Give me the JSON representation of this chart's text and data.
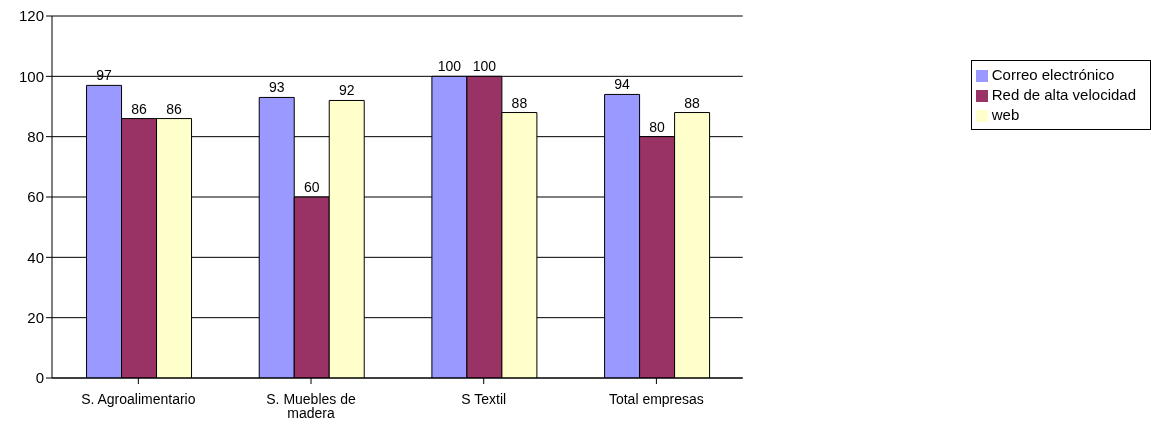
{
  "chart_data": {
    "type": "bar",
    "categories": [
      "S. Agroalimentario",
      "S. Muebles de madera",
      "S Textil",
      "Total empresas"
    ],
    "series": [
      {
        "name": "Correo electrónico",
        "color": "#9999ff",
        "values": [
          97,
          93,
          100,
          94
        ]
      },
      {
        "name": "Red de alta velocidad",
        "color": "#993366",
        "values": [
          86,
          60,
          100,
          80
        ]
      },
      {
        "name": "web",
        "color": "#ffffcc",
        "values": [
          86,
          92,
          88,
          88
        ]
      }
    ],
    "ylim": [
      0,
      120
    ],
    "yticks": [
      0,
      20,
      40,
      60,
      80,
      100,
      120
    ],
    "grid": "y",
    "legend": "right",
    "data_labels": true
  }
}
